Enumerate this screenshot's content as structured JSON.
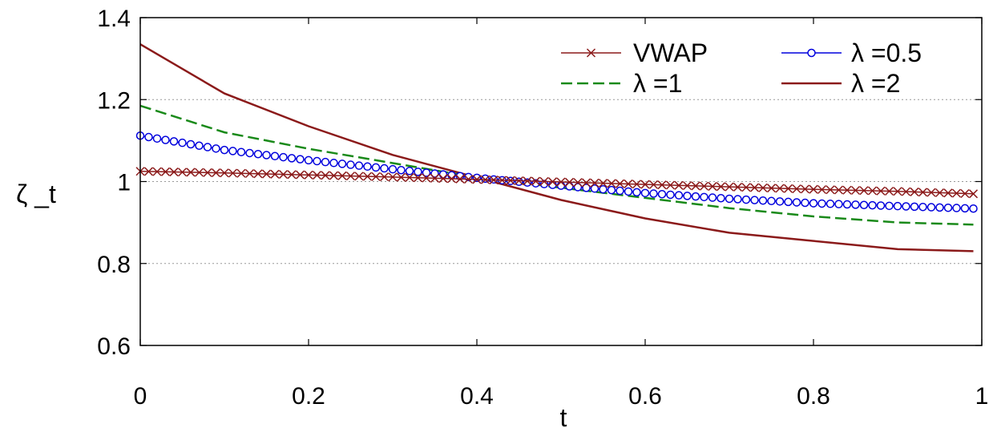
{
  "chart_data": {
    "type": "line",
    "xlabel": "t",
    "ylabel": "ζ _t",
    "xlim": [
      0,
      1
    ],
    "ylim": [
      0.6,
      1.4
    ],
    "x_ticks": [
      "0",
      "0.2",
      "0.4",
      "0.6",
      "0.8",
      "1"
    ],
    "y_ticks": [
      "0.6",
      "0.8",
      "1",
      "1.2",
      "1.4"
    ],
    "grid": "horizontal dotted",
    "legend": "top-right, two columns",
    "series": [
      {
        "name": "VWAP",
        "style": "solid-x-markers",
        "color": "#8b1a1a",
        "x": [
          0,
          0.1,
          0.2,
          0.3,
          0.4,
          0.5,
          0.6,
          0.7,
          0.8,
          0.9,
          0.99
        ],
        "values": [
          1.025,
          1.021,
          1.016,
          1.011,
          1.005,
          0.999,
          0.993,
          0.987,
          0.981,
          0.976,
          0.97
        ]
      },
      {
        "name": "λ =0.5",
        "style": "solid-circle-markers",
        "color": "#0000dd",
        "x": [
          0,
          0.1,
          0.2,
          0.3,
          0.4,
          0.5,
          0.6,
          0.7,
          0.8,
          0.9,
          0.99
        ],
        "values": [
          1.112,
          1.077,
          1.052,
          1.03,
          1.009,
          0.99,
          0.972,
          0.958,
          0.947,
          0.94,
          0.934
        ]
      },
      {
        "name": "λ =1",
        "style": "dashed",
        "color": "#1a8a1a",
        "x": [
          0,
          0.1,
          0.2,
          0.3,
          0.4,
          0.5,
          0.6,
          0.7,
          0.8,
          0.9,
          0.99
        ],
        "values": [
          1.185,
          1.12,
          1.08,
          1.045,
          1.01,
          0.985,
          0.96,
          0.935,
          0.915,
          0.9,
          0.895
        ]
      },
      {
        "name": "λ =2",
        "style": "solid",
        "color": "#8b1a1a",
        "x": [
          0,
          0.1,
          0.2,
          0.3,
          0.4,
          0.5,
          0.6,
          0.7,
          0.8,
          0.9,
          0.99
        ],
        "values": [
          1.335,
          1.215,
          1.135,
          1.065,
          1.01,
          0.955,
          0.91,
          0.875,
          0.855,
          0.835,
          0.83
        ]
      }
    ]
  }
}
